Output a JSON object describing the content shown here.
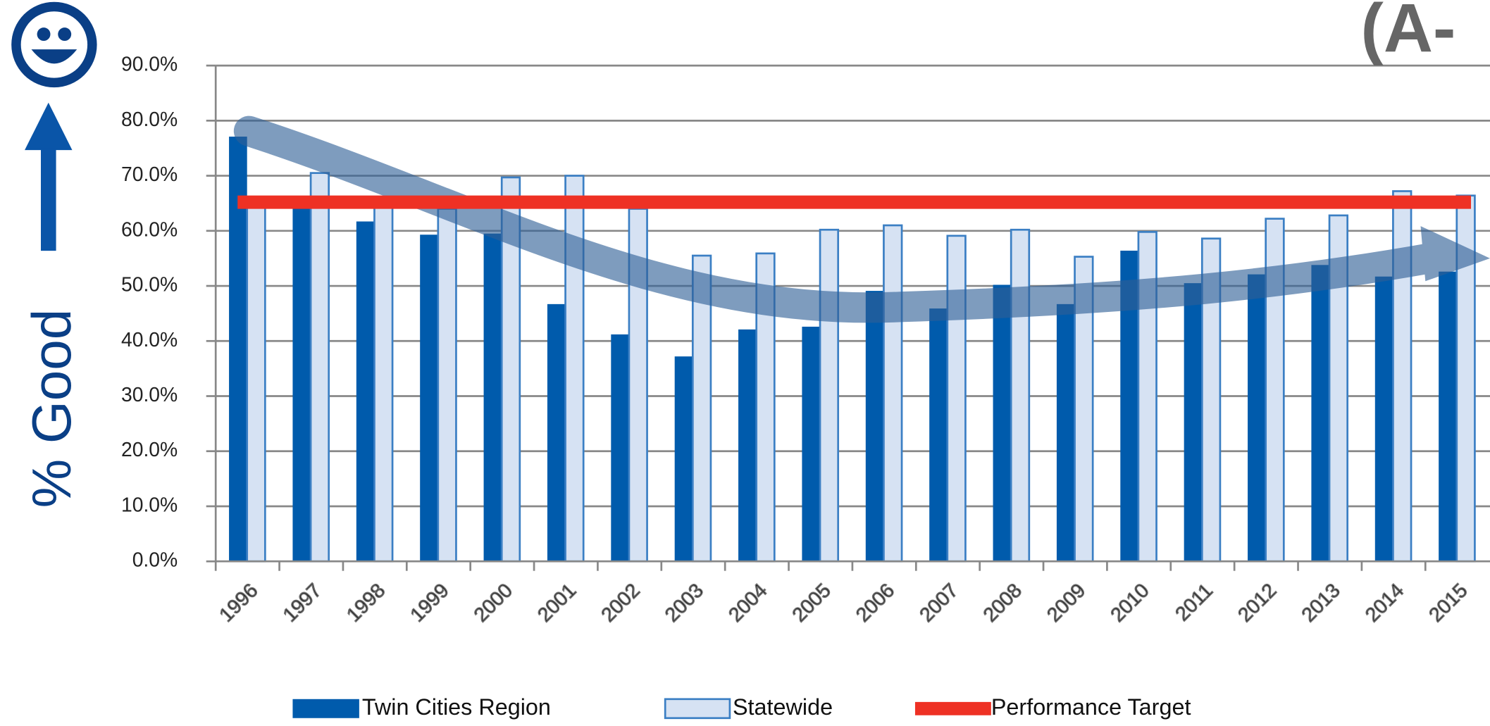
{
  "chart_data": {
    "type": "bar",
    "title": "(A-",
    "ylabel": "% Good",
    "categories": [
      "1996",
      "1997",
      "1998",
      "1999",
      "2000",
      "2001",
      "2002",
      "2003",
      "2004",
      "2005",
      "2006",
      "2007",
      "2008",
      "2009",
      "2010",
      "2011",
      "2012",
      "2013",
      "2014",
      "2015"
    ],
    "series": [
      {
        "name": "Twin Cities Region",
        "color": "#005bac",
        "values": [
          77.1,
          65,
          61.7,
          59.3,
          59.5,
          46.7,
          41.2,
          37.2,
          42.1,
          42.6,
          49.1,
          45.9,
          50.2,
          46.7,
          56.4,
          50.5,
          52.1,
          53.8,
          51.7,
          52.6
        ]
      },
      {
        "name": "Statewide",
        "color": "#d6e2f3",
        "values": [
          66,
          70.5,
          65,
          64,
          69.7,
          70,
          64,
          55.5,
          55.9,
          60.2,
          61,
          59.1,
          60.2,
          55.3,
          59.8,
          58.6,
          62.2,
          62.8,
          67.2,
          66.4
        ]
      }
    ],
    "target": {
      "name": "Performance Target",
      "color": "#ee3124",
      "value": 65.2
    },
    "ylim": [
      0,
      90
    ],
    "yticks": [
      {
        "value": 0,
        "label": "0.0%"
      },
      {
        "value": 10,
        "label": "10.0%"
      },
      {
        "value": 20,
        "label": "20.0%"
      },
      {
        "value": 30,
        "label": "30.0%"
      },
      {
        "value": 40,
        "label": "40.0%"
      },
      {
        "value": 50,
        "label": "50.0%"
      },
      {
        "value": 60,
        "label": "60.0%"
      },
      {
        "value": 70,
        "label": "70.0%"
      },
      {
        "value": 80,
        "label": "80.0%"
      },
      {
        "value": 90,
        "label": "90.0%"
      }
    ],
    "grid": true
  }
}
